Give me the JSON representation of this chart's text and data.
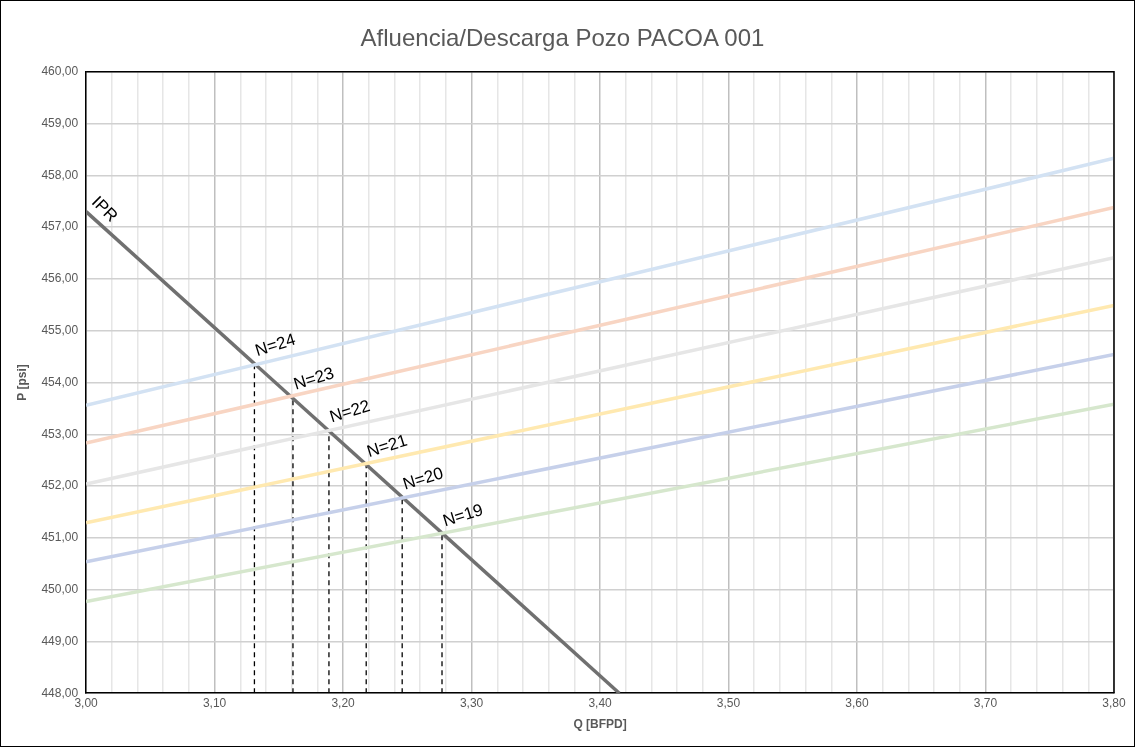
{
  "chart_data": {
    "type": "line",
    "title": "Afluencia/Descarga Pozo PACOA 001",
    "xlabel": "Q [BFPD]",
    "ylabel": "P [psi]",
    "xlim": [
      3.0,
      3.8
    ],
    "xticks": [
      {
        "value": 3.0,
        "label": "3,00"
      },
      {
        "value": 3.02,
        "label": null
      },
      {
        "value": 3.04,
        "label": null
      },
      {
        "value": 3.06,
        "label": null
      },
      {
        "value": 3.08,
        "label": null
      },
      {
        "value": 3.1,
        "label": "3,10"
      },
      {
        "value": 3.12,
        "label": null
      },
      {
        "value": 3.14,
        "label": null
      },
      {
        "value": 3.16,
        "label": null
      },
      {
        "value": 3.18,
        "label": null
      },
      {
        "value": 3.2,
        "label": "3,20"
      },
      {
        "value": 3.22,
        "label": null
      },
      {
        "value": 3.24,
        "label": null
      },
      {
        "value": 3.26,
        "label": null
      },
      {
        "value": 3.28,
        "label": null
      },
      {
        "value": 3.3,
        "label": "3,30"
      },
      {
        "value": 3.32,
        "label": null
      },
      {
        "value": 3.34,
        "label": null
      },
      {
        "value": 3.36,
        "label": null
      },
      {
        "value": 3.38,
        "label": null
      },
      {
        "value": 3.4,
        "label": "3,40"
      },
      {
        "value": 3.42,
        "label": null
      },
      {
        "value": 3.44,
        "label": null
      },
      {
        "value": 3.46,
        "label": null
      },
      {
        "value": 3.48,
        "label": null
      },
      {
        "value": 3.5,
        "label": "3,50"
      },
      {
        "value": 3.52,
        "label": null
      },
      {
        "value": 3.54,
        "label": null
      },
      {
        "value": 3.56,
        "label": null
      },
      {
        "value": 3.58,
        "label": null
      },
      {
        "value": 3.6,
        "label": "3,60"
      },
      {
        "value": 3.62,
        "label": null
      },
      {
        "value": 3.64,
        "label": null
      },
      {
        "value": 3.66,
        "label": null
      },
      {
        "value": 3.68,
        "label": null
      },
      {
        "value": 3.7,
        "label": "3,70"
      },
      {
        "value": 3.72,
        "label": null
      },
      {
        "value": 3.74,
        "label": null
      },
      {
        "value": 3.76,
        "label": null
      },
      {
        "value": 3.78,
        "label": null
      },
      {
        "value": 3.8,
        "label": "3,80"
      }
    ],
    "ylim": [
      448,
      460
    ],
    "yticks": [
      {
        "value": 448,
        "label": "448,00"
      },
      {
        "value": 449,
        "label": "449,00"
      },
      {
        "value": 450,
        "label": "450,00"
      },
      {
        "value": 451,
        "label": "451,00"
      },
      {
        "value": 452,
        "label": "452,00"
      },
      {
        "value": 453,
        "label": "453,00"
      },
      {
        "value": 454,
        "label": "454,00"
      },
      {
        "value": 455,
        "label": "455,00"
      },
      {
        "value": 456,
        "label": "456,00"
      },
      {
        "value": 457,
        "label": "457,00"
      },
      {
        "value": 458,
        "label": "458,00"
      },
      {
        "value": 459,
        "label": "459,00"
      },
      {
        "value": 460,
        "label": "460,00"
      }
    ],
    "grid": true,
    "legend": false,
    "marker": "none",
    "line_style": "solid",
    "series": [
      {
        "color": "#d3e2f3",
        "x": [
          3.0,
          3.8
        ],
        "values": [
          453.56,
          458.33
        ]
      },
      {
        "color": "#f8d5c3",
        "x": [
          3.0,
          3.8
        ],
        "values": [
          452.83,
          457.38
        ]
      },
      {
        "color": "#e6e6e6",
        "x": [
          3.0,
          3.8
        ],
        "values": [
          452.04,
          456.41
        ]
      },
      {
        "color": "#ffe9b0",
        "x": [
          3.0,
          3.8
        ],
        "values": [
          451.29,
          455.49
        ]
      },
      {
        "color": "#c6d0ea",
        "x": [
          3.0,
          3.8
        ],
        "values": [
          450.54,
          454.54
        ]
      },
      {
        "color": "#d6e7cd",
        "x": [
          3.0,
          3.8
        ],
        "values": [
          449.77,
          453.58
        ]
      },
      {
        "color": "#707070",
        "x": [
          3.0,
          3.415
        ],
        "values": [
          457.3,
          448
        ]
      },
      {
        "color": "#000000",
        "line_style": "dashed",
        "x": [
          3.131,
          3.131
        ],
        "values": [
          448,
          454.36
        ]
      },
      {
        "color": "#000000",
        "line_style": "dashed",
        "x": [
          3.161,
          3.161
        ],
        "values": [
          448,
          453.71
        ]
      },
      {
        "color": "#000000",
        "line_style": "dashed",
        "x": [
          3.189,
          3.189
        ],
        "values": [
          448,
          453.08
        ]
      },
      {
        "color": "#000000",
        "line_style": "dashed",
        "x": [
          3.218,
          3.218
        ],
        "values": [
          448,
          452.41
        ]
      },
      {
        "color": "#000000",
        "line_style": "dashed",
        "x": [
          3.246,
          3.246
        ],
        "values": [
          448,
          451.78
        ]
      },
      {
        "color": "#000000",
        "line_style": "dashed",
        "x": [
          3.277,
          3.277
        ],
        "values": [
          448,
          451.07
        ]
      }
    ],
    "annotations": [
      {
        "text": "IPR",
        "x": 3.0,
        "y": 457.3
      },
      {
        "text": "N=24",
        "x": 3.131,
        "y": 454.36
      },
      {
        "text": "N=23",
        "x": 3.161,
        "y": 453.71
      },
      {
        "text": "N=22",
        "x": 3.189,
        "y": 453.08
      },
      {
        "text": "N=21",
        "x": 3.218,
        "y": 452.41
      },
      {
        "text": "N=20",
        "x": 3.246,
        "y": 451.78
      },
      {
        "text": "N=19",
        "x": 3.277,
        "y": 451.07
      }
    ]
  }
}
